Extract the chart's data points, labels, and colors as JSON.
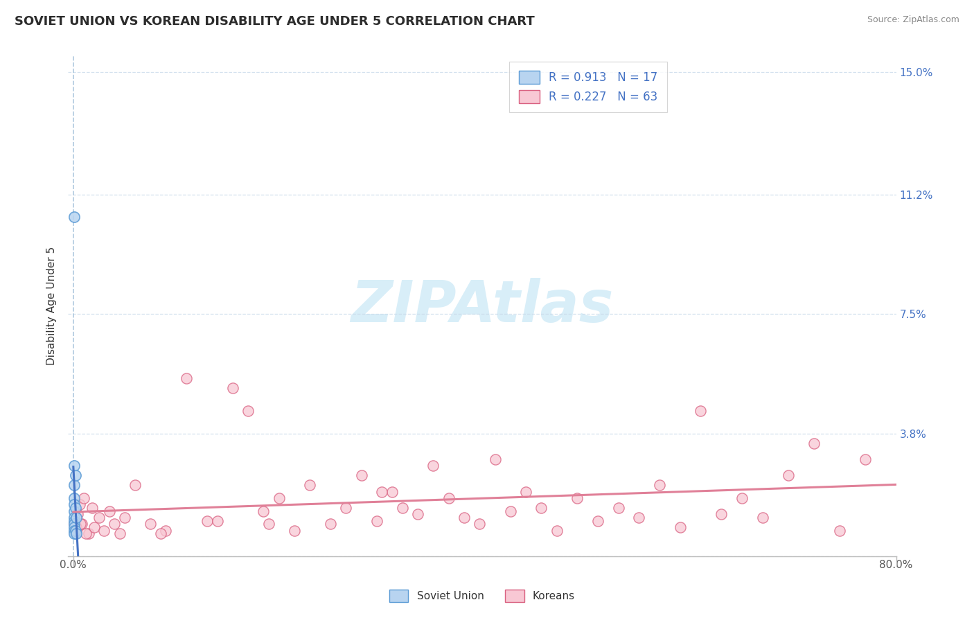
{
  "title": "SOVIET UNION VS KOREAN DISABILITY AGE UNDER 5 CORRELATION CHART",
  "source": "Source: ZipAtlas.com",
  "ylabel": "Disability Age Under 5",
  "xlim": [
    -0.005,
    0.8
  ],
  "ylim": [
    0.0,
    0.155
  ],
  "yticks": [
    0.0,
    0.038,
    0.075,
    0.112,
    0.15
  ],
  "ytick_labels": [
    "",
    "3.8%",
    "7.5%",
    "11.2%",
    "15.0%"
  ],
  "xtick_vals": [
    0.0,
    0.8
  ],
  "xtick_labels": [
    "0.0%",
    "80.0%"
  ],
  "soviet_R": "0.913",
  "soviet_N": "17",
  "korean_R": "0.227",
  "korean_N": "63",
  "soviet_fill": "#b8d4f0",
  "soviet_edge": "#5b9bd5",
  "korean_fill": "#f8c8d4",
  "korean_edge": "#d96080",
  "trend_soviet": "#4472c4",
  "trend_korean": "#e08098",
  "grid_color": "#c8daea",
  "vline_color": "#a8c4dc",
  "watermark_color": "#d8eef8",
  "title_color": "#2c2c2c",
  "source_color": "#888888",
  "ytick_color": "#4472c4",
  "xtick_color": "#555555",
  "bottom_border_color": "#bbbbbb",
  "soviet_x": [
    0.001,
    0.001,
    0.001,
    0.001,
    0.001,
    0.001,
    0.001,
    0.001,
    0.001,
    0.001,
    0.001,
    0.001,
    0.002,
    0.002,
    0.002,
    0.003,
    0.003
  ],
  "soviet_y": [
    0.105,
    0.028,
    0.022,
    0.018,
    0.016,
    0.014,
    0.012,
    0.011,
    0.01,
    0.009,
    0.008,
    0.007,
    0.025,
    0.015,
    0.008,
    0.012,
    0.007
  ],
  "korean_x": [
    0.001,
    0.002,
    0.004,
    0.006,
    0.008,
    0.01,
    0.015,
    0.02,
    0.025,
    0.03,
    0.035,
    0.04,
    0.045,
    0.06,
    0.075,
    0.09,
    0.11,
    0.13,
    0.155,
    0.17,
    0.185,
    0.2,
    0.215,
    0.23,
    0.25,
    0.265,
    0.28,
    0.295,
    0.31,
    0.32,
    0.335,
    0.35,
    0.365,
    0.38,
    0.395,
    0.41,
    0.425,
    0.44,
    0.455,
    0.47,
    0.49,
    0.51,
    0.53,
    0.55,
    0.57,
    0.59,
    0.61,
    0.63,
    0.65,
    0.67,
    0.695,
    0.72,
    0.745,
    0.77,
    0.003,
    0.007,
    0.012,
    0.018,
    0.05,
    0.085,
    0.14,
    0.19,
    0.3
  ],
  "korean_y": [
    0.01,
    0.008,
    0.013,
    0.016,
    0.01,
    0.018,
    0.007,
    0.009,
    0.012,
    0.008,
    0.014,
    0.01,
    0.007,
    0.022,
    0.01,
    0.008,
    0.055,
    0.011,
    0.052,
    0.045,
    0.014,
    0.018,
    0.008,
    0.022,
    0.01,
    0.015,
    0.025,
    0.011,
    0.02,
    0.015,
    0.013,
    0.028,
    0.018,
    0.012,
    0.01,
    0.03,
    0.014,
    0.02,
    0.015,
    0.008,
    0.018,
    0.011,
    0.015,
    0.012,
    0.022,
    0.009,
    0.045,
    0.013,
    0.018,
    0.012,
    0.025,
    0.035,
    0.008,
    0.03,
    0.009,
    0.01,
    0.007,
    0.015,
    0.012,
    0.007,
    0.011,
    0.01,
    0.02
  ]
}
